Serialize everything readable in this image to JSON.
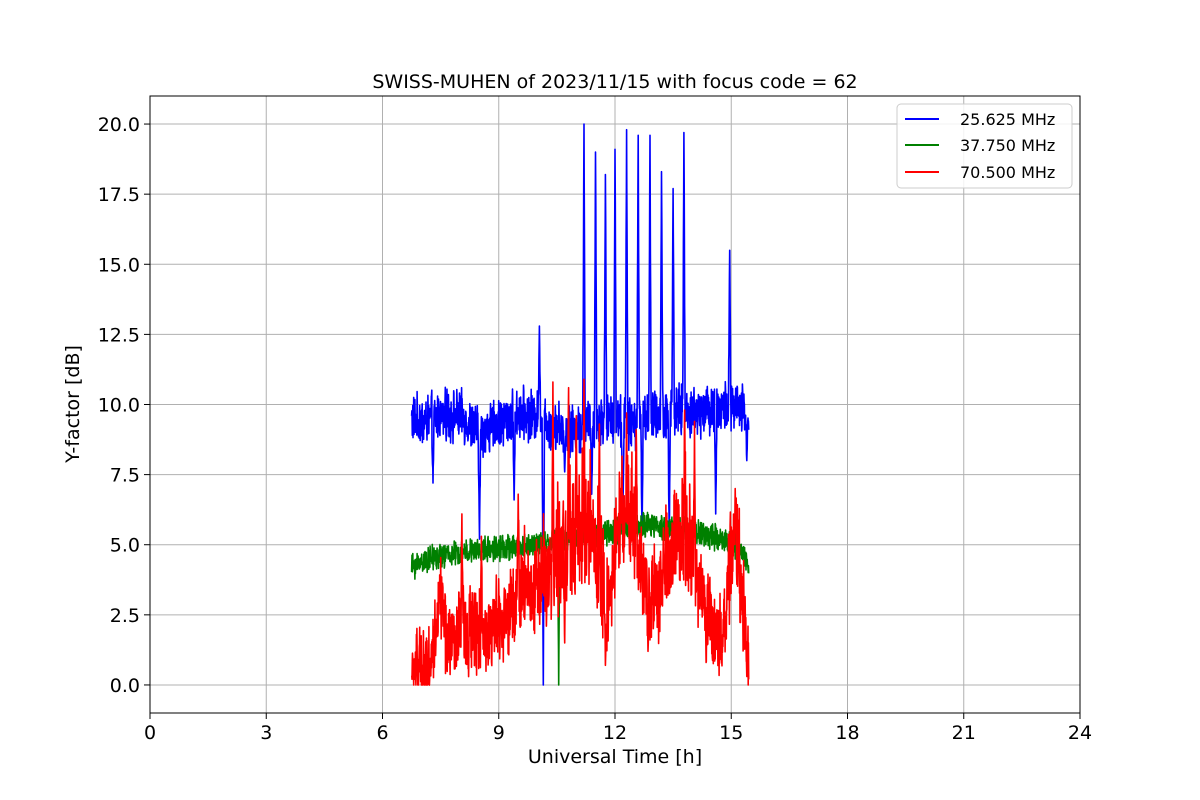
{
  "chart_data": {
    "type": "line",
    "title": "SWISS-MUHEN of 2023/11/15 with focus code = 62",
    "xlabel": "Universal Time [h]",
    "ylabel": "Y-factor [dB]",
    "xlim": [
      0,
      24
    ],
    "ylim": [
      -1,
      21
    ],
    "xticks": [
      "0",
      "3",
      "6",
      "9",
      "12",
      "15",
      "18",
      "21",
      "24"
    ],
    "yticks": [
      "0.0",
      "2.5",
      "5.0",
      "7.5",
      "10.0",
      "12.5",
      "15.0",
      "17.5",
      "20.0"
    ],
    "grid": true,
    "legend_position": "top-right",
    "series": [
      {
        "name": "25.625 MHz",
        "color": "#0000ff",
        "base_points": [
          [
            6.75,
            9.5
          ],
          [
            7.0,
            9.4
          ],
          [
            7.5,
            9.6
          ],
          [
            8.0,
            9.6
          ],
          [
            8.5,
            9.0
          ],
          [
            9.0,
            9.3
          ],
          [
            9.5,
            9.7
          ],
          [
            10.0,
            9.6
          ],
          [
            10.5,
            9.2
          ],
          [
            11.0,
            9.1
          ],
          [
            11.5,
            9.4
          ],
          [
            12.0,
            9.5
          ],
          [
            12.5,
            9.3
          ],
          [
            13.0,
            9.6
          ],
          [
            13.5,
            9.8
          ],
          [
            14.0,
            9.7
          ],
          [
            14.5,
            9.9
          ],
          [
            15.0,
            9.9
          ],
          [
            15.45,
            9.7
          ]
        ],
        "spikes": [
          [
            10.05,
            12.8
          ],
          [
            11.2,
            20.0
          ],
          [
            11.5,
            19.0
          ],
          [
            11.75,
            18.2
          ],
          [
            12.0,
            19.1
          ],
          [
            12.3,
            19.8
          ],
          [
            12.6,
            19.6
          ],
          [
            12.9,
            19.6
          ],
          [
            13.2,
            18.3
          ],
          [
            13.5,
            17.7
          ],
          [
            13.78,
            19.7
          ],
          [
            14.96,
            15.5
          ]
        ],
        "dips": [
          [
            7.3,
            7.2
          ],
          [
            8.5,
            5.2
          ],
          [
            9.4,
            6.6
          ],
          [
            10.15,
            0.0
          ],
          [
            10.7,
            7.6
          ],
          [
            11.4,
            6.8
          ],
          [
            12.2,
            5.6
          ],
          [
            12.7,
            5.4
          ],
          [
            13.4,
            5.3
          ],
          [
            14.6,
            6.1
          ],
          [
            15.4,
            8.0
          ]
        ]
      },
      {
        "name": "37.750 MHz",
        "color": "#008000",
        "base_points": [
          [
            6.75,
            4.2
          ],
          [
            7.0,
            4.4
          ],
          [
            7.5,
            4.6
          ],
          [
            8.0,
            4.7
          ],
          [
            8.5,
            4.8
          ],
          [
            9.0,
            4.9
          ],
          [
            9.5,
            4.9
          ],
          [
            10.0,
            5.0
          ],
          [
            10.5,
            5.1
          ],
          [
            11.0,
            5.2
          ],
          [
            11.5,
            5.4
          ],
          [
            12.0,
            5.5
          ],
          [
            12.5,
            5.6
          ],
          [
            13.0,
            5.7
          ],
          [
            13.5,
            5.6
          ],
          [
            14.0,
            5.5
          ],
          [
            14.5,
            5.3
          ],
          [
            15.0,
            5.1
          ],
          [
            15.45,
            4.4
          ]
        ],
        "spikes": [],
        "dips": [
          [
            10.55,
            0.0
          ]
        ]
      },
      {
        "name": "70.500 MHz",
        "color": "#ff0000",
        "base_points": [
          [
            6.75,
            0.4
          ],
          [
            7.0,
            0.6
          ],
          [
            7.3,
            0.9
          ],
          [
            7.5,
            2.4
          ],
          [
            7.7,
            1.4
          ],
          [
            8.0,
            1.8
          ],
          [
            8.3,
            1.7
          ],
          [
            8.6,
            1.6
          ],
          [
            9.0,
            2.0
          ],
          [
            9.3,
            2.5
          ],
          [
            9.6,
            3.1
          ],
          [
            9.9,
            3.2
          ],
          [
            10.2,
            3.4
          ],
          [
            10.5,
            4.0
          ],
          [
            10.8,
            4.4
          ],
          [
            11.1,
            4.8
          ],
          [
            11.4,
            5.0
          ],
          [
            11.8,
            2.3
          ],
          [
            12.0,
            4.4
          ],
          [
            12.3,
            5.6
          ],
          [
            12.6,
            4.4
          ],
          [
            12.9,
            2.6
          ],
          [
            13.2,
            3.1
          ],
          [
            13.5,
            4.3
          ],
          [
            13.9,
            4.6
          ],
          [
            14.2,
            2.8
          ],
          [
            14.5,
            1.8
          ],
          [
            14.8,
            1.5
          ],
          [
            15.0,
            4.3
          ],
          [
            15.2,
            4.0
          ],
          [
            15.45,
            0.9
          ]
        ],
        "spikes": [
          [
            7.45,
            3.5
          ],
          [
            8.05,
            6.1
          ],
          [
            8.55,
            5.3
          ],
          [
            9.5,
            6.8
          ],
          [
            10.4,
            10.8
          ],
          [
            10.8,
            10.6
          ],
          [
            11.0,
            9.6
          ],
          [
            11.2,
            10.9
          ],
          [
            11.6,
            9.3
          ],
          [
            12.3,
            9.7
          ],
          [
            12.55,
            9.1
          ],
          [
            13.25,
            5.6
          ],
          [
            13.8,
            9.8
          ],
          [
            14.05,
            9.4
          ],
          [
            15.1,
            7.0
          ]
        ],
        "dips": [
          [
            7.1,
            0.0
          ],
          [
            10.7,
            1.5
          ],
          [
            11.75,
            0.7
          ],
          [
            12.85,
            1.2
          ],
          [
            14.35,
            0.8
          ],
          [
            15.4,
            0.3
          ]
        ]
      }
    ]
  }
}
